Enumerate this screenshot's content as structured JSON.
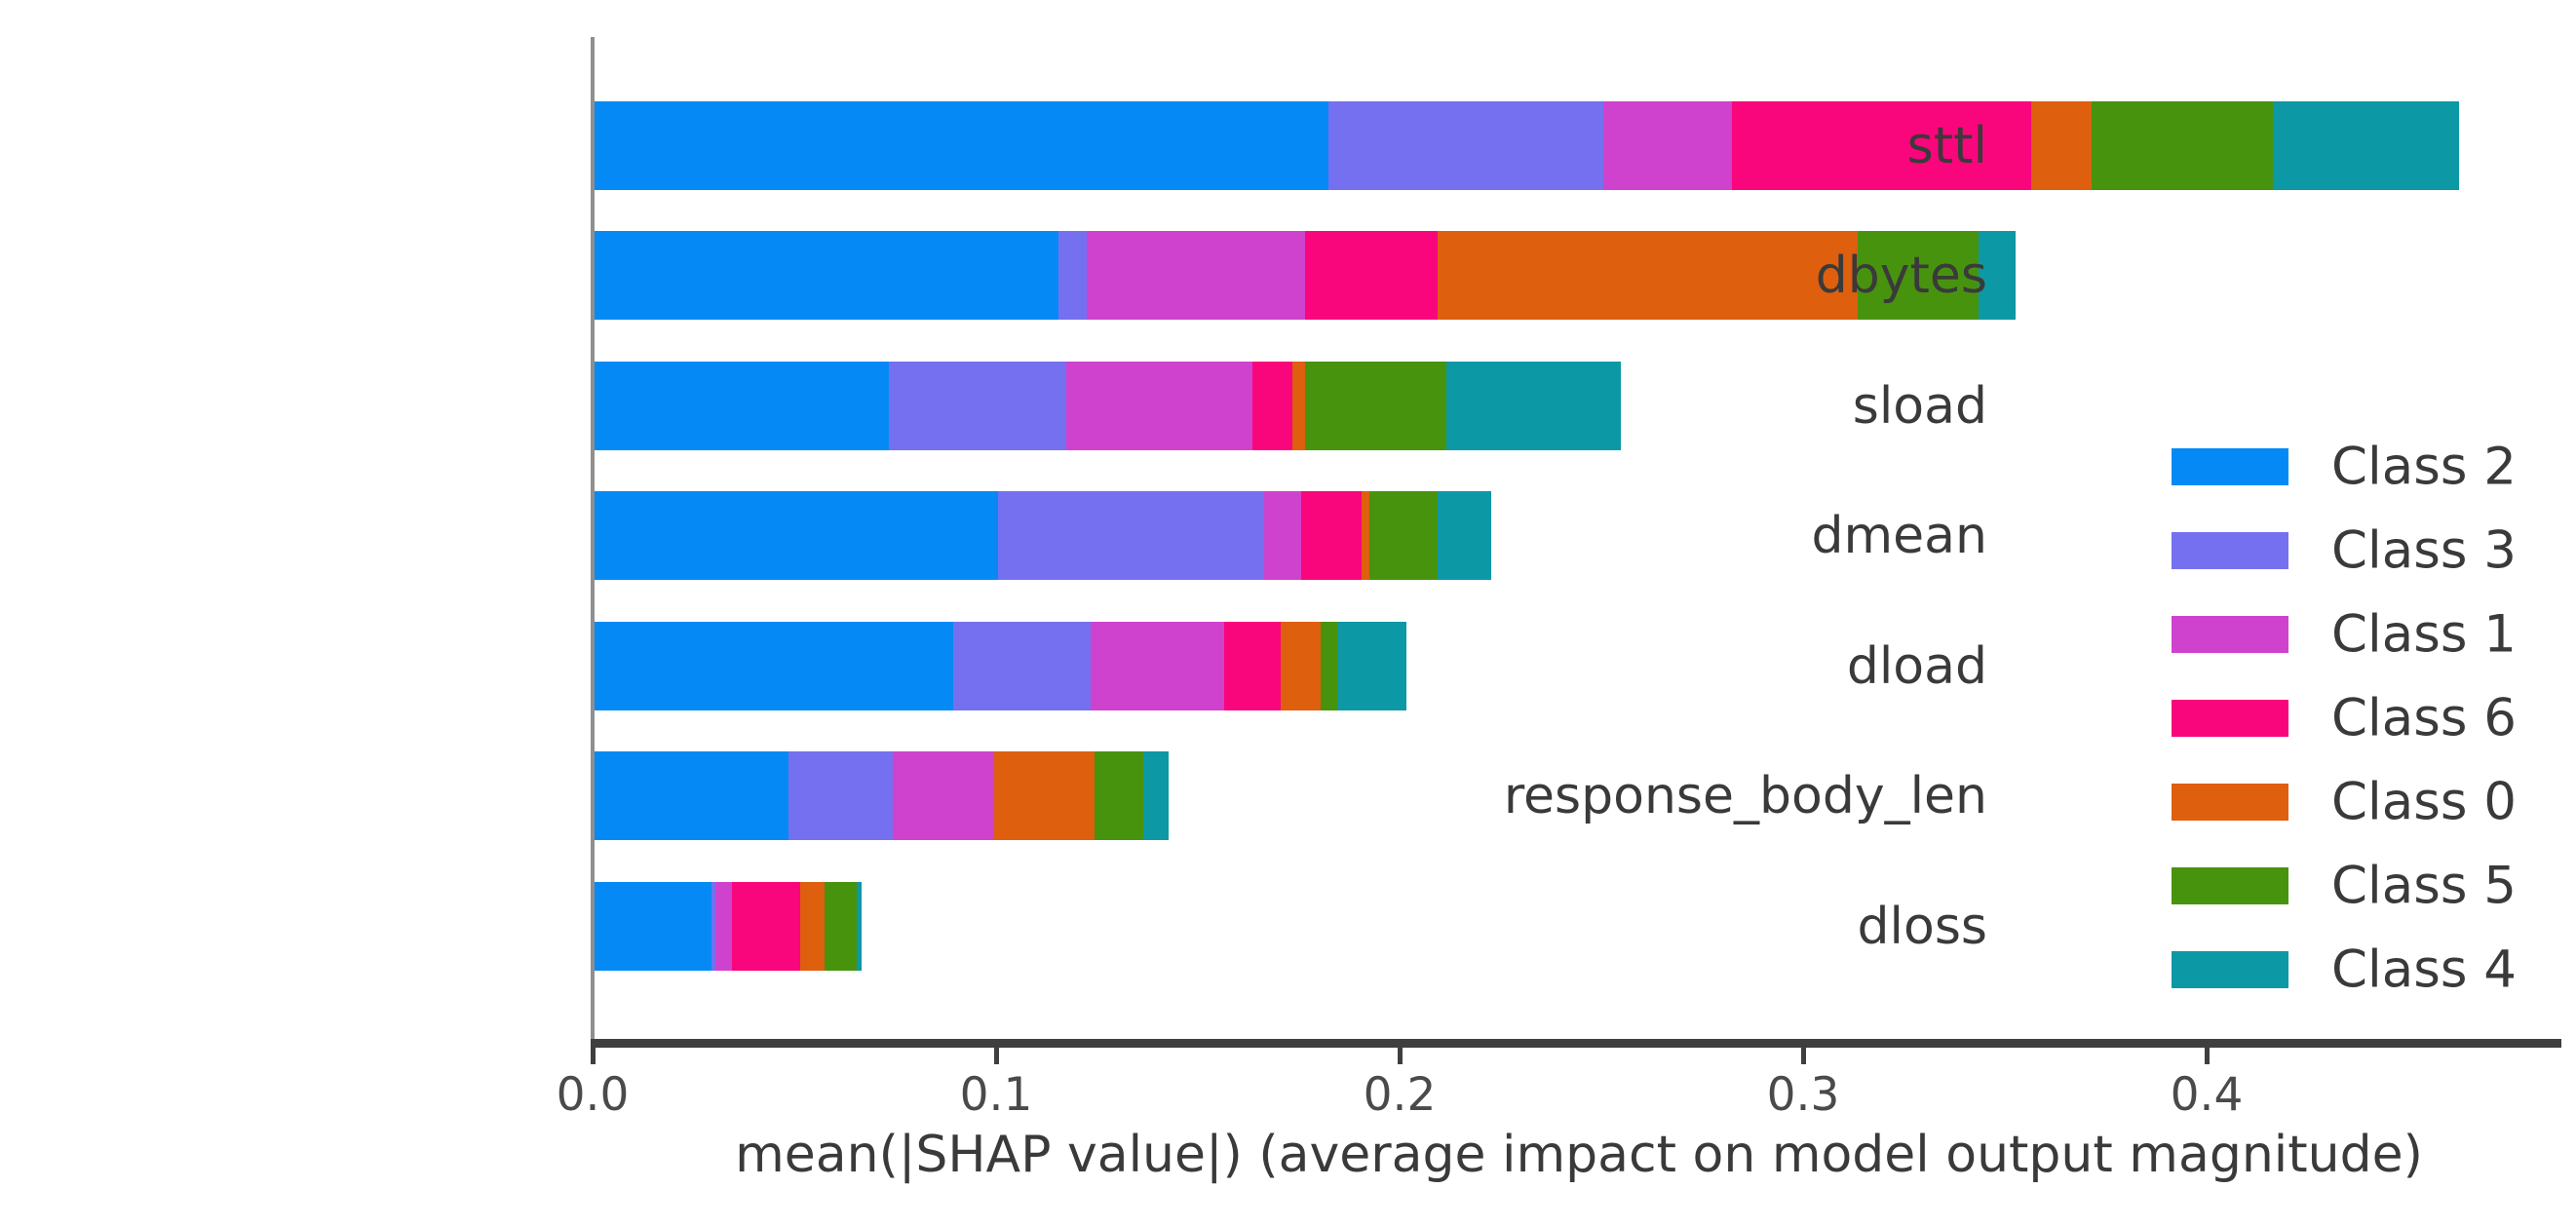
{
  "figure": {
    "x_axis": {
      "tick_labels": [
        "0.0",
        "0.1",
        "0.2",
        "0.3",
        "0.4"
      ],
      "tick_values": [
        0,
        0.1,
        0.2,
        0.3,
        0.4
      ]
    }
  },
  "chart_data": {
    "type": "bar",
    "orientation": "horizontal-stacked",
    "title": "",
    "xlabel": "mean(|SHAP value|) (average impact on model output magnitude)",
    "ylabel": "",
    "xlim": [
      0,
      0.487
    ],
    "grid": false,
    "legend_position": "right",
    "categories": [
      "sttl",
      "dbytes",
      "sload",
      "dmean",
      "dload",
      "response_body_len",
      "dloss"
    ],
    "series": [
      {
        "name": "Class 2",
        "color": "#058af5",
        "values": [
          0.182,
          0.115,
          0.073,
          0.1,
          0.089,
          0.048,
          0.029
        ]
      },
      {
        "name": "Class 3",
        "color": "#7470f0",
        "values": [
          0.068,
          0.007,
          0.044,
          0.066,
          0.034,
          0.026,
          0.001
        ]
      },
      {
        "name": "Class 1",
        "color": "#cf42cd",
        "values": [
          0.032,
          0.054,
          0.046,
          0.009,
          0.033,
          0.025,
          0.004
        ]
      },
      {
        "name": "Class 6",
        "color": "#f9067c",
        "values": [
          0.074,
          0.033,
          0.01,
          0.015,
          0.014,
          0.0,
          0.017
        ]
      },
      {
        "name": "Class 0",
        "color": "#de5f0e",
        "values": [
          0.015,
          0.104,
          0.003,
          0.002,
          0.01,
          0.025,
          0.006
        ]
      },
      {
        "name": "Class 5",
        "color": "#47930e",
        "values": [
          0.045,
          0.03,
          0.035,
          0.017,
          0.004,
          0.012,
          0.008
        ]
      },
      {
        "name": "Class 4",
        "color": "#0d98a6",
        "values": [
          0.046,
          0.009,
          0.043,
          0.013,
          0.017,
          0.006,
          0.001
        ]
      }
    ],
    "totals": [
      0.462,
      0.352,
      0.254,
      0.222,
      0.201,
      0.142,
      0.066
    ]
  }
}
